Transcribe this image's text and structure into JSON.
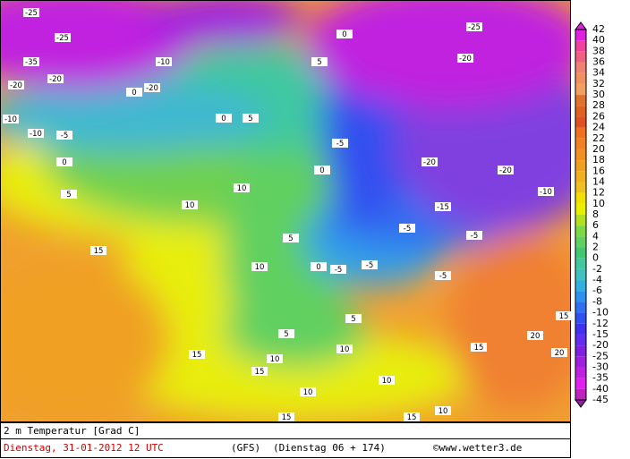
{
  "map": {
    "legend": {
      "levels": [
        42,
        40,
        38,
        36,
        34,
        32,
        30,
        28,
        26,
        24,
        22,
        20,
        18,
        16,
        14,
        12,
        10,
        8,
        6,
        4,
        2,
        0,
        -2,
        -4,
        -6,
        -8,
        -10,
        -12,
        -15,
        -20,
        -25,
        -30,
        -35,
        -40,
        -45
      ],
      "colors": [
        "#e020e0",
        "#f040a0",
        "#f06080",
        "#f08070",
        "#f09060",
        "#f0a060",
        "#e07030",
        "#e06020",
        "#e05020",
        "#f07020",
        "#f08020",
        "#f09020",
        "#f0a020",
        "#f0b020",
        "#f0c020",
        "#f0e000",
        "#e8f000",
        "#b0e020",
        "#80d840",
        "#60d060",
        "#40c870",
        "#40c8a0",
        "#40c0c0",
        "#30b0e0",
        "#3090f0",
        "#3070f0",
        "#3050f0",
        "#4030f0",
        "#6030f0",
        "#8020e0",
        "#a020e0",
        "#c020e0",
        "#e020f0",
        "#c020c0",
        "#9020a0"
      ]
    },
    "contour_labels": [
      "-25",
      "-25",
      "-20",
      "-20",
      "-35",
      "-10",
      "-10",
      "-5",
      "0",
      "5",
      "10",
      "10",
      "15",
      "10",
      "15",
      "15",
      "10",
      "10",
      "15",
      "10",
      "10",
      "15",
      "10",
      "15",
      "20",
      "20",
      "15",
      "-5",
      "0",
      "-5",
      "-5",
      "-5",
      "-5",
      "-15",
      "-20",
      "-20",
      "-10",
      "-20",
      "-25",
      "-5",
      "0",
      "0",
      "5",
      "5",
      "0",
      "-20",
      "-10",
      "0",
      "5",
      "5",
      "5"
    ],
    "footer": {
      "variable": "2 m Temperatur [Grad C]",
      "date": "Dienstag, 31-01-2012  12 UTC",
      "model": "(GFS)",
      "run": "(Dienstag 06 + 174)",
      "source": "©www.wetter3.de"
    }
  }
}
